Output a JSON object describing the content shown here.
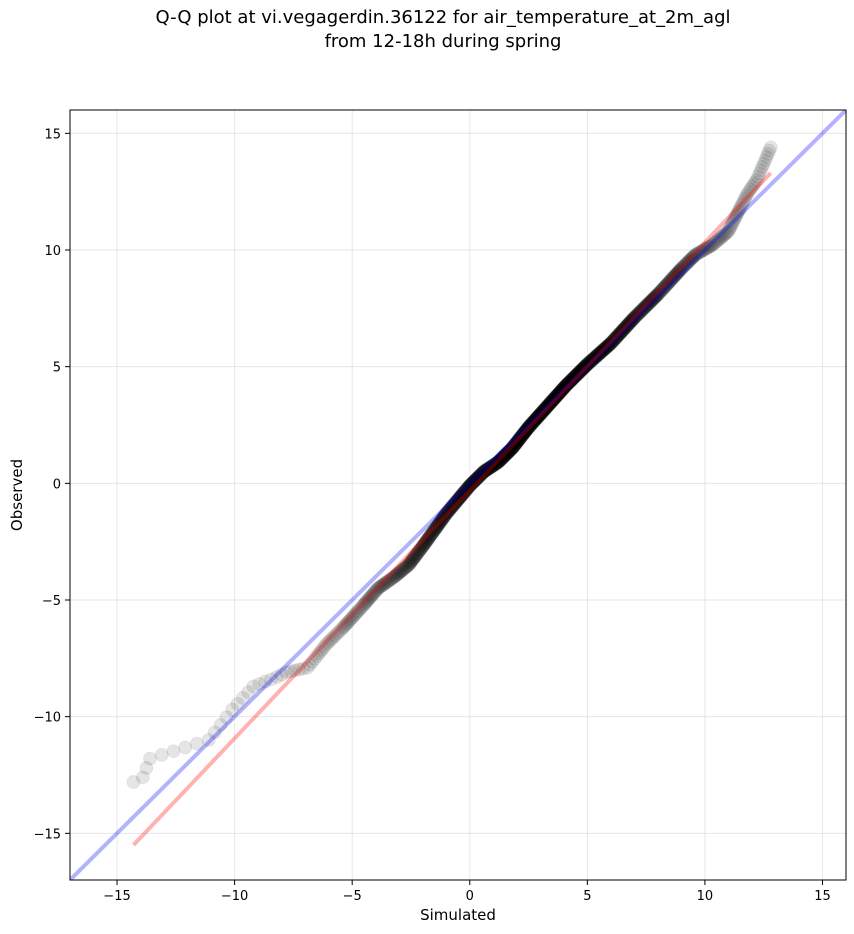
{
  "chart_data": {
    "type": "scatter",
    "title": "Q-Q plot at vi.vegagerdin.36122 for air_temperature_at_2m_agl",
    "subtitle": "from 12-18h during spring",
    "xlabel": "Simulated",
    "ylabel": "Observed",
    "xlim": [
      -17,
      16
    ],
    "ylim": [
      -17,
      16
    ],
    "xticks": [
      -15,
      -10,
      -5,
      0,
      5,
      10,
      15
    ],
    "yticks": [
      -15,
      -10,
      -5,
      0,
      5,
      10,
      15
    ],
    "xtick_labels": [
      "−15",
      "−10",
      "−5",
      "0",
      "5",
      "10",
      "15"
    ],
    "ytick_labels": [
      "−15",
      "−10",
      "−5",
      "0",
      "5",
      "10",
      "15"
    ],
    "grid": true,
    "series": [
      {
        "kind": "points",
        "color": "#000000",
        "opacity": 0.1,
        "knots": [
          [
            -14.3,
            -12.8
          ],
          [
            -13.9,
            -12.6
          ],
          [
            -13.6,
            -11.8
          ],
          [
            -11.1,
            -11.0
          ],
          [
            -10.1,
            -9.7
          ],
          [
            -9.2,
            -8.7
          ],
          [
            -8.7,
            -8.5
          ],
          [
            -8.2,
            -8.3
          ],
          [
            -7.8,
            -8.1
          ],
          [
            -6.9,
            -7.9
          ],
          [
            -6.5,
            -7.4
          ],
          [
            -6.1,
            -6.9
          ],
          [
            -5.4,
            -6.2
          ],
          [
            -4.5,
            -5.2
          ],
          [
            -3.9,
            -4.5
          ],
          [
            -3.2,
            -4.0
          ],
          [
            -2.6,
            -3.5
          ],
          [
            -2.0,
            -2.7
          ],
          [
            -1.5,
            -2.0
          ],
          [
            -1.0,
            -1.3
          ],
          [
            -0.5,
            -0.7
          ],
          [
            0.0,
            -0.1
          ],
          [
            0.6,
            0.5
          ],
          [
            1.2,
            0.9
          ],
          [
            1.8,
            1.5
          ],
          [
            2.5,
            2.4
          ],
          [
            3.3,
            3.3
          ],
          [
            4.1,
            4.2
          ],
          [
            5.0,
            5.1
          ],
          [
            6.0,
            6.0
          ],
          [
            7.0,
            7.1
          ],
          [
            8.0,
            8.1
          ],
          [
            9.0,
            9.2
          ],
          [
            9.6,
            9.8
          ],
          [
            10.3,
            10.2
          ],
          [
            11.0,
            10.8
          ],
          [
            11.5,
            11.8
          ],
          [
            11.8,
            12.4
          ],
          [
            12.2,
            13.0
          ],
          [
            12.8,
            14.4
          ]
        ]
      },
      {
        "kind": "line",
        "name": "",
        "color": "#0000ff",
        "opacity": 0.3,
        "points": [
          [
            -17,
            -17
          ],
          [
            16,
            16
          ]
        ]
      },
      {
        "kind": "line",
        "name": "",
        "color": "#ff0000",
        "opacity": 0.3,
        "points": [
          [
            -14.3,
            -15.5
          ],
          [
            12.8,
            13.3
          ]
        ]
      }
    ]
  }
}
